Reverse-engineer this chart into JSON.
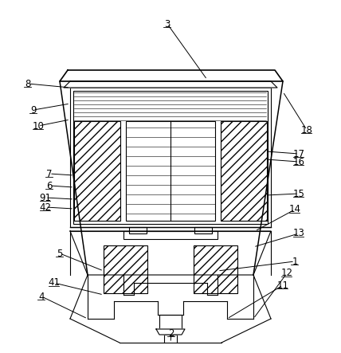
{
  "background_color": "#ffffff",
  "line_color": "#000000",
  "label_data": [
    [
      "3",
      260,
      100,
      210,
      30
    ],
    [
      "8",
      88,
      110,
      35,
      105
    ],
    [
      "9",
      88,
      130,
      42,
      138
    ],
    [
      "10",
      88,
      150,
      48,
      158
    ],
    [
      "7",
      93,
      220,
      62,
      218
    ],
    [
      "6",
      93,
      235,
      62,
      233
    ],
    [
      "91",
      93,
      250,
      57,
      248
    ],
    [
      "42",
      93,
      262,
      57,
      260
    ],
    [
      "5",
      130,
      340,
      75,
      318
    ],
    [
      "41",
      130,
      370,
      68,
      355
    ],
    [
      "4",
      110,
      400,
      52,
      372
    ],
    [
      "2",
      214,
      430,
      215,
      418
    ],
    [
      "1",
      273,
      340,
      370,
      328
    ],
    [
      "11",
      285,
      400,
      355,
      358
    ],
    [
      "12",
      318,
      400,
      360,
      343
    ],
    [
      "13",
      318,
      310,
      375,
      293
    ],
    [
      "14",
      320,
      290,
      370,
      263
    ],
    [
      "15",
      334,
      245,
      375,
      243
    ],
    [
      "16",
      334,
      200,
      375,
      203
    ],
    [
      "17",
      334,
      190,
      375,
      193
    ],
    [
      "18",
      355,
      115,
      385,
      163
    ]
  ]
}
